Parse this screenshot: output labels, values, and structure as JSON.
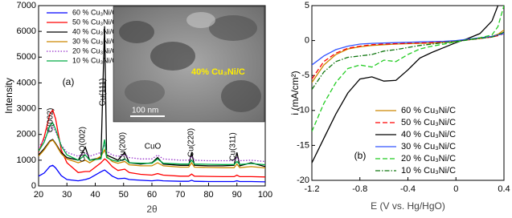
{
  "chart_data": [
    {
      "type": "line",
      "x_label": "2θ",
      "y_label": "Intensity",
      "panel_label": "(a)",
      "xlim": [
        20,
        100
      ],
      "ylim": [
        0,
        7000
      ],
      "xticks": [
        20,
        30,
        40,
        50,
        60,
        70,
        80,
        90,
        100
      ],
      "yticks": [
        0,
        1000,
        2000,
        3000,
        4000,
        5000,
        6000,
        7000
      ],
      "legend": "top-left",
      "x": [
        20,
        22,
        24,
        25,
        26,
        28,
        30,
        34,
        36.5,
        38,
        42,
        43.3,
        44,
        46,
        48,
        50.4,
        52,
        56,
        60,
        62,
        64,
        70,
        73,
        74,
        75,
        80,
        85,
        89,
        90,
        91,
        95,
        100
      ],
      "series": [
        {
          "name": "60 % Cu₃Ni/C",
          "color": "#0000ff",
          "dash": "solid",
          "values": [
            380,
            500,
            760,
            800,
            700,
            400,
            250,
            200,
            250,
            300,
            550,
            620,
            560,
            380,
            280,
            300,
            250,
            220,
            200,
            220,
            200,
            180,
            180,
            220,
            180,
            170,
            170,
            170,
            200,
            170,
            170,
            160
          ]
        },
        {
          "name": "50 % Cu₃Ni/C",
          "color": "#ff0000",
          "dash": "solid",
          "values": [
            1300,
            1900,
            2800,
            2950,
            2600,
            1400,
            900,
            520,
            560,
            560,
            900,
            1050,
            1000,
            750,
            600,
            650,
            520,
            450,
            420,
            480,
            420,
            380,
            380,
            460,
            380,
            370,
            360,
            360,
            420,
            360,
            360,
            350
          ]
        },
        {
          "name": "40 % Cu₃Ni/C",
          "color": "#000000",
          "dash": "solid",
          "values": [
            1200,
            1450,
            1750,
            1800,
            1650,
            1300,
            1100,
            1000,
            1500,
            1000,
            1100,
            6200,
            1200,
            1100,
            1000,
            1300,
            900,
            850,
            900,
            1100,
            850,
            800,
            800,
            1300,
            800,
            780,
            780,
            800,
            1300,
            780,
            900,
            750
          ]
        },
        {
          "name": "30 % Cu₃Ni/C",
          "color": "#cc8800",
          "dash": "solid",
          "values": [
            1150,
            1400,
            1720,
            1780,
            1620,
            1250,
            1050,
            900,
            1000,
            900,
            1150,
            1400,
            1150,
            950,
            880,
            950,
            820,
            780,
            780,
            900,
            780,
            730,
            730,
            900,
            730,
            720,
            710,
            710,
            850,
            710,
            750,
            700
          ]
        },
        {
          "name": "20 % Cu₃Ni/C",
          "color": "#9933cc",
          "dash": "dotted",
          "values": [
            1500,
            1800,
            2200,
            2300,
            2100,
            1600,
            1300,
            1150,
            1300,
            1150,
            1300,
            1600,
            1350,
            1200,
            1150,
            1200,
            1100,
            1050,
            1050,
            1200,
            1050,
            1000,
            1000,
            1150,
            1000,
            980,
            980,
            980,
            1100,
            980,
            1000,
            950
          ]
        },
        {
          "name": "10 % Cu₃Ni/C",
          "color": "#00aa44",
          "dash": "solid",
          "values": [
            1350,
            1700,
            2350,
            2450,
            2200,
            1550,
            1200,
            1000,
            1200,
            1000,
            1050,
            1800,
            1100,
            1000,
            950,
            1050,
            900,
            880,
            880,
            1050,
            880,
            850,
            850,
            1000,
            850,
            840,
            830,
            830,
            950,
            830,
            870,
            820
          ]
        }
      ],
      "annotations": [
        "C(002)",
        "CuO(002)",
        "Cu(111)",
        "Cu(200)",
        "CuO",
        "Cu(220)",
        "Cu(311)"
      ],
      "inset": {
        "label": "40% Cu₃Ni/C",
        "scale_bar": "100 nm"
      }
    },
    {
      "type": "line",
      "x_label": "E (V vs. Hg/HgO)",
      "y_label": "i (mA/cm²)",
      "panel_label": "(b)",
      "xlim": [
        -1.2,
        0.4
      ],
      "ylim": [
        -20,
        5
      ],
      "xticks": [
        -1.2,
        -0.8,
        -0.4,
        0,
        0.4
      ],
      "yticks": [
        -20,
        -15,
        -10,
        -5,
        0,
        5
      ],
      "legend": "bottom-right",
      "x": [
        -1.2,
        -1.1,
        -1.0,
        -0.9,
        -0.8,
        -0.7,
        -0.6,
        -0.5,
        -0.4,
        -0.3,
        -0.2,
        -0.1,
        0,
        0.1,
        0.2,
        0.3,
        0.35,
        0.4
      ],
      "series": [
        {
          "name": "60 % Cu₃Ni/C",
          "color": "#cc8800",
          "dash": "solid",
          "values": [
            -6,
            -3.5,
            -2,
            -1.2,
            -0.9,
            -0.7,
            -0.6,
            -0.5,
            -0.45,
            -0.4,
            -0.35,
            -0.25,
            -0.1,
            0.1,
            0.3,
            0.6,
            0.9,
            1.5
          ]
        },
        {
          "name": "50 % Cu₃Ni/C",
          "color": "#ff0000",
          "dash": "dashed",
          "values": [
            -5.5,
            -3,
            -1.8,
            -1.1,
            -0.8,
            -0.6,
            -0.5,
            -0.45,
            -0.4,
            -0.35,
            -0.3,
            -0.2,
            -0.05,
            0.1,
            0.3,
            0.5,
            0.7,
            1
          ]
        },
        {
          "name": "40 % Cu₃Ni/C",
          "color": "#000000",
          "dash": "solid",
          "values": [
            -17.5,
            -14,
            -10.5,
            -7.5,
            -5.5,
            -5.2,
            -5.8,
            -5.7,
            -4.2,
            -2.5,
            -1.7,
            -1,
            -0.3,
            0.3,
            1,
            2.8,
            5,
            null
          ]
        },
        {
          "name": "30 % Cu₃Ni/C",
          "color": "#3355ff",
          "dash": "solid",
          "values": [
            -3.5,
            -2.2,
            -1.3,
            -0.8,
            -0.5,
            -0.4,
            -0.35,
            -0.3,
            -0.25,
            -0.2,
            -0.15,
            -0.1,
            0,
            0.2,
            0.4,
            0.6,
            0.8,
            1
          ]
        },
        {
          "name": "20 % Cu₃Ni/C",
          "color": "#22cc22",
          "dash": "dashed",
          "values": [
            -13,
            -9,
            -6,
            -4,
            -3.5,
            -3.8,
            -2.8,
            -3,
            -2,
            -1.2,
            -0.8,
            -0.5,
            -0.2,
            0.1,
            0.4,
            0.8,
            2,
            5
          ]
        },
        {
          "name": "10 % Cu₃Ni/C",
          "color": "#117711",
          "dash": "dashdot",
          "values": [
            -7,
            -4.5,
            -3,
            -2.4,
            -2.2,
            -2,
            -1.5,
            -1.3,
            -1,
            -0.7,
            -0.5,
            -0.3,
            -0.1,
            0.1,
            0.3,
            0.5,
            0.8,
            1.2
          ]
        }
      ]
    }
  ]
}
